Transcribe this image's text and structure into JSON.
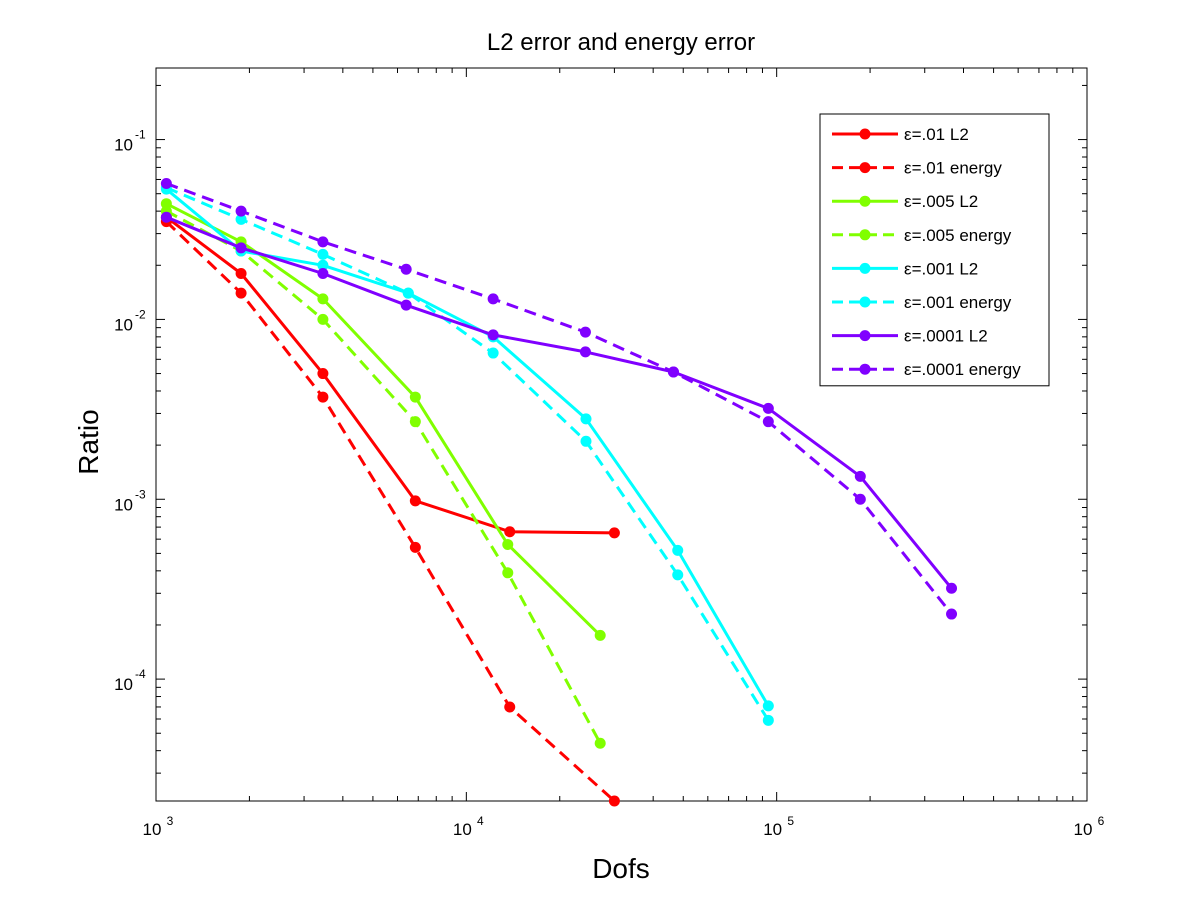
{
  "chart_data": {
    "type": "line",
    "title": "L2 error and energy error",
    "xlabel": "Dofs",
    "ylabel": "Ratio",
    "xscale": "log",
    "yscale": "log",
    "xlim": [
      1000,
      1000000
    ],
    "ylim": [
      2.1e-05,
      0.25
    ],
    "x_ticks": [
      {
        "value": 1000,
        "base": "10",
        "exp": "3"
      },
      {
        "value": 10000,
        "base": "10",
        "exp": "4"
      },
      {
        "value": 100000,
        "base": "10",
        "exp": "5"
      },
      {
        "value": 1000000,
        "base": "10",
        "exp": "6"
      }
    ],
    "y_ticks": [
      {
        "value": 0.0001,
        "base": "10",
        "exp": "-4"
      },
      {
        "value": 0.001,
        "base": "10",
        "exp": "-3"
      },
      {
        "value": 0.01,
        "base": "10",
        "exp": "-2"
      },
      {
        "value": 0.1,
        "base": "10",
        "exp": "-1"
      }
    ],
    "grid": false,
    "legend_position": "top-right",
    "series": [
      {
        "name": "ε=.01 L2",
        "color": "#ff0000",
        "dashed": false,
        "x": [
          1080,
          1880,
          3450,
          6850,
          13800,
          30000
        ],
        "y": [
          0.037,
          0.018,
          0.005,
          0.00098,
          0.00066,
          0.00065
        ]
      },
      {
        "name": "ε=.01 energy",
        "color": "#ff0000",
        "dashed": true,
        "x": [
          1080,
          1880,
          3450,
          6850,
          13800,
          30000
        ],
        "y": [
          0.035,
          0.014,
          0.0037,
          0.00054,
          7e-05,
          2.1e-05
        ]
      },
      {
        "name": "ε=.005 L2",
        "color": "#80ff00",
        "dashed": false,
        "x": [
          1080,
          1880,
          3450,
          6850,
          13600,
          27000
        ],
        "y": [
          0.044,
          0.027,
          0.013,
          0.0037,
          0.00056,
          0.000175
        ]
      },
      {
        "name": "ε=.005 energy",
        "color": "#80ff00",
        "dashed": true,
        "x": [
          1080,
          1880,
          3450,
          6850,
          13600,
          27000
        ],
        "y": [
          0.04,
          0.024,
          0.01,
          0.0027,
          0.00039,
          4.4e-05
        ]
      },
      {
        "name": "ε=.001 L2",
        "color": "#00ffff",
        "dashed": false,
        "x": [
          1080,
          1880,
          3450,
          6500,
          12200,
          24300,
          48000,
          94000
        ],
        "y": [
          0.053,
          0.024,
          0.02,
          0.014,
          0.008,
          0.0028,
          0.00052,
          7.1e-05
        ]
      },
      {
        "name": "ε=.001 energy",
        "color": "#00ffff",
        "dashed": true,
        "x": [
          1080,
          1880,
          3450,
          6500,
          12200,
          24300,
          48000,
          94000
        ],
        "y": [
          0.054,
          0.036,
          0.023,
          0.014,
          0.0065,
          0.0021,
          0.00038,
          5.9e-05
        ]
      },
      {
        "name": "ε=.0001 L2",
        "color": "#8000ff",
        "dashed": false,
        "x": [
          1080,
          1880,
          3450,
          6400,
          12200,
          24200,
          46500,
          94000,
          186000,
          366000
        ],
        "y": [
          0.037,
          0.025,
          0.018,
          0.012,
          0.0082,
          0.0066,
          0.0051,
          0.0032,
          0.00134,
          0.00032
        ]
      },
      {
        "name": "ε=.0001 energy",
        "color": "#8000ff",
        "dashed": true,
        "x": [
          1080,
          1880,
          3450,
          6400,
          12200,
          24200,
          46500,
          94000,
          186000,
          366000
        ],
        "y": [
          0.057,
          0.04,
          0.027,
          0.019,
          0.013,
          0.0085,
          0.0051,
          0.0027,
          0.001,
          0.00023
        ]
      }
    ]
  }
}
